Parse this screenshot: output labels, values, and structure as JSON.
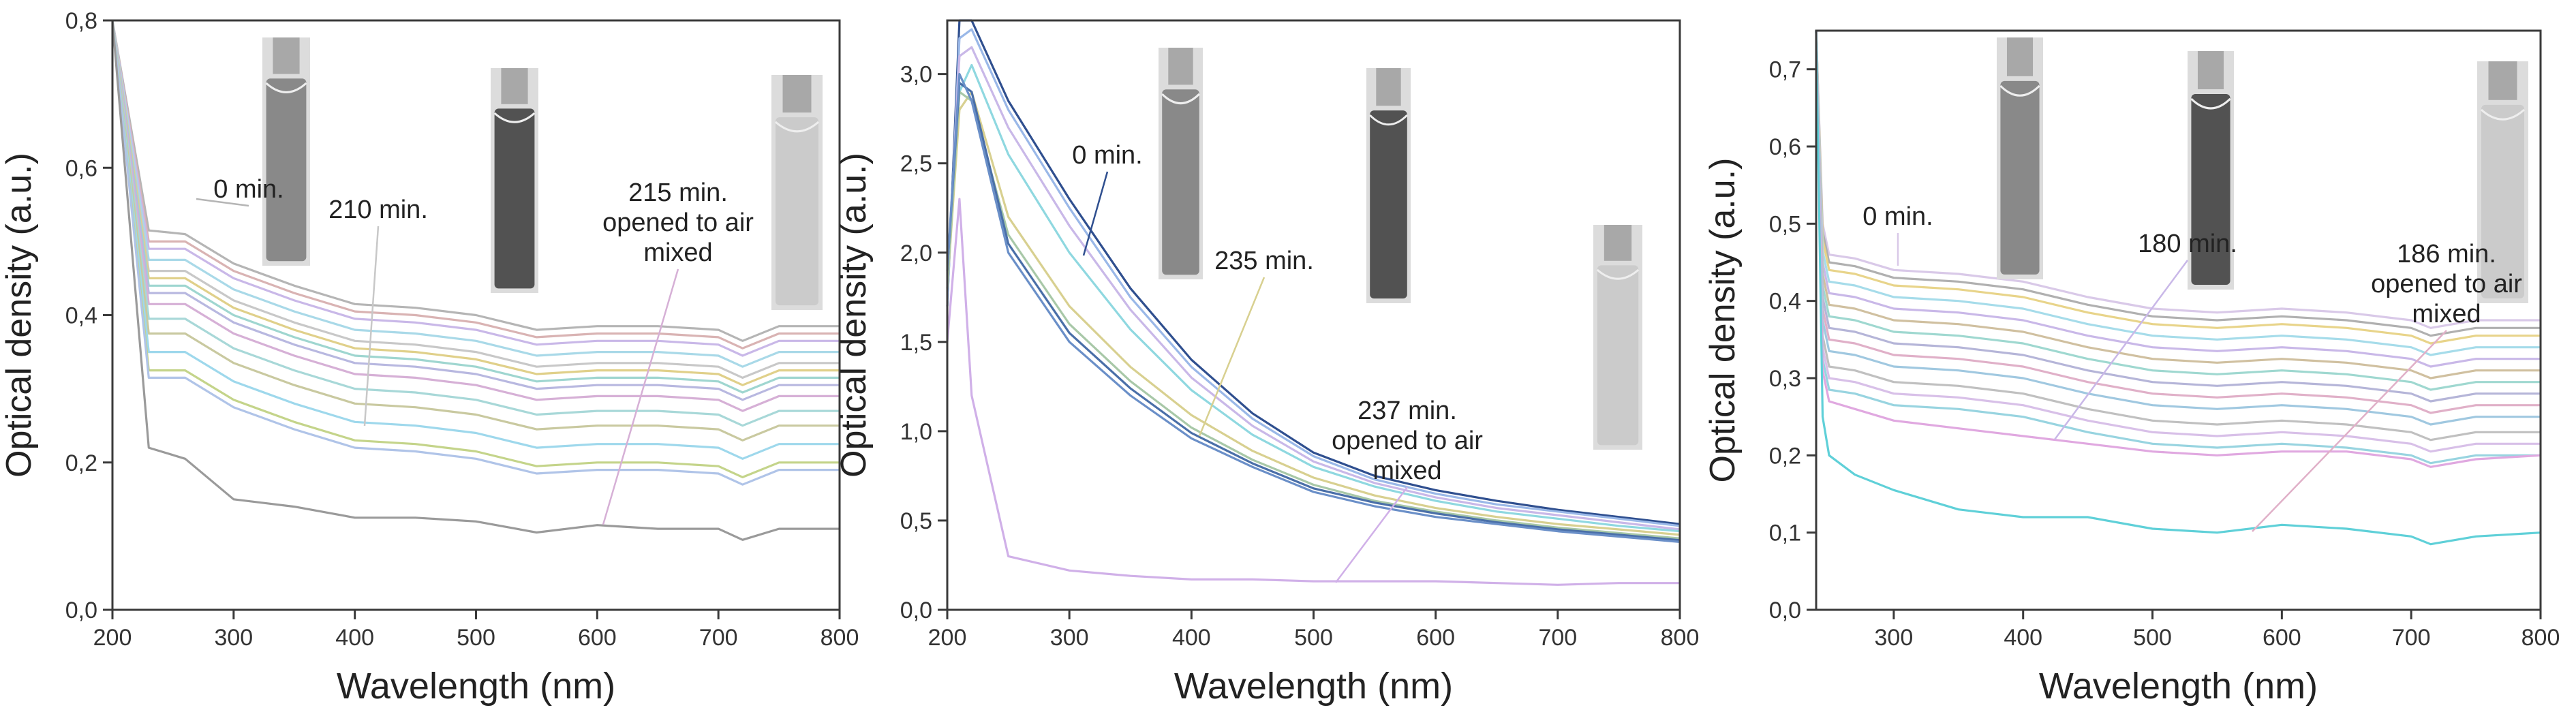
{
  "colors": {
    "axis": "#3a3a3a",
    "tick_text": "#333333",
    "annotation_text": "#222222",
    "photo_tube": "#8a8a8a"
  },
  "chart_data": [
    {
      "type": "line",
      "xlabel": "Wavelength (nm)",
      "ylabel": "Optical density (a.u.)",
      "xlim": [
        200,
        800
      ],
      "ylim": [
        0,
        0.8
      ],
      "x_ticks": [
        "200",
        "300",
        "400",
        "500",
        "600",
        "700",
        "800"
      ],
      "y_ticks": [
        "0,0",
        "0,2",
        "0,4",
        "0,6",
        "0,8"
      ],
      "grid": false,
      "x": [
        200,
        230,
        260,
        300,
        350,
        400,
        450,
        500,
        550,
        600,
        650,
        700,
        720,
        750,
        800
      ],
      "series_colors": [
        "#b5b5b5",
        "#d9b3b3",
        "#c9b8e8",
        "#a9d9e8",
        "#c8c8c8",
        "#e0d08a",
        "#9fd6d0",
        "#b8b8e0",
        "#d6b0d6",
        "#a8d8d8",
        "#c9c9a0",
        "#9ed8ec",
        "#c4d48a",
        "#b0c4e8",
        "#9a9a9a"
      ],
      "series": [
        {
          "values": [
            0.8,
            0.515,
            0.51,
            0.47,
            0.44,
            0.415,
            0.41,
            0.4,
            0.38,
            0.385,
            0.385,
            0.38,
            0.365,
            0.385,
            0.385
          ]
        },
        {
          "values": [
            0.8,
            0.5,
            0.5,
            0.46,
            0.43,
            0.405,
            0.4,
            0.39,
            0.37,
            0.375,
            0.375,
            0.37,
            0.355,
            0.375,
            0.375
          ]
        },
        {
          "values": [
            0.8,
            0.49,
            0.49,
            0.45,
            0.42,
            0.395,
            0.39,
            0.38,
            0.36,
            0.365,
            0.365,
            0.36,
            0.345,
            0.365,
            0.365
          ]
        },
        {
          "values": [
            0.8,
            0.475,
            0.475,
            0.435,
            0.405,
            0.38,
            0.375,
            0.365,
            0.345,
            0.35,
            0.35,
            0.345,
            0.33,
            0.35,
            0.35
          ]
        },
        {
          "values": [
            0.8,
            0.46,
            0.46,
            0.42,
            0.39,
            0.365,
            0.36,
            0.35,
            0.33,
            0.335,
            0.335,
            0.33,
            0.315,
            0.335,
            0.335
          ]
        },
        {
          "values": [
            0.8,
            0.45,
            0.45,
            0.41,
            0.38,
            0.355,
            0.35,
            0.34,
            0.32,
            0.325,
            0.325,
            0.32,
            0.305,
            0.325,
            0.325
          ]
        },
        {
          "values": [
            0.8,
            0.44,
            0.44,
            0.4,
            0.37,
            0.345,
            0.34,
            0.33,
            0.31,
            0.315,
            0.315,
            0.31,
            0.295,
            0.315,
            0.315
          ]
        },
        {
          "values": [
            0.8,
            0.43,
            0.43,
            0.39,
            0.36,
            0.335,
            0.33,
            0.32,
            0.3,
            0.305,
            0.305,
            0.3,
            0.285,
            0.305,
            0.305
          ]
        },
        {
          "values": [
            0.8,
            0.415,
            0.415,
            0.375,
            0.345,
            0.32,
            0.315,
            0.305,
            0.285,
            0.29,
            0.29,
            0.285,
            0.27,
            0.29,
            0.29
          ]
        },
        {
          "values": [
            0.8,
            0.395,
            0.395,
            0.355,
            0.325,
            0.3,
            0.295,
            0.285,
            0.265,
            0.27,
            0.27,
            0.265,
            0.25,
            0.27,
            0.27
          ]
        },
        {
          "values": [
            0.8,
            0.375,
            0.375,
            0.335,
            0.305,
            0.28,
            0.275,
            0.265,
            0.245,
            0.25,
            0.25,
            0.245,
            0.23,
            0.25,
            0.25
          ]
        },
        {
          "values": [
            0.8,
            0.35,
            0.35,
            0.31,
            0.28,
            0.255,
            0.25,
            0.24,
            0.22,
            0.225,
            0.225,
            0.22,
            0.205,
            0.225,
            0.225
          ]
        },
        {
          "values": [
            0.8,
            0.325,
            0.325,
            0.285,
            0.255,
            0.23,
            0.225,
            0.215,
            0.195,
            0.2,
            0.2,
            0.195,
            0.18,
            0.2,
            0.2
          ]
        },
        {
          "values": [
            0.8,
            0.315,
            0.315,
            0.275,
            0.245,
            0.22,
            0.215,
            0.205,
            0.185,
            0.19,
            0.19,
            0.185,
            0.17,
            0.19,
            0.19
          ]
        },
        {
          "values": [
            0.8,
            0.22,
            0.205,
            0.15,
            0.14,
            0.125,
            0.125,
            0.12,
            0.105,
            0.115,
            0.11,
            0.11,
            0.095,
            0.11,
            0.11
          ]
        }
      ],
      "annotations": [
        {
          "text": "0 min.",
          "x": 270,
          "y": 0.51
        },
        {
          "text": "210 min.",
          "x": 420,
          "y": 0.26
        },
        {
          "text": "215 min.\nopened to air\nmixed",
          "x": 600,
          "y": 0.12
        }
      ]
    },
    {
      "type": "line",
      "xlabel": "Wavelength (nm)",
      "ylabel": "Optical density (a.u.)",
      "xlim": [
        200,
        800
      ],
      "ylim": [
        0,
        3.3
      ],
      "x_ticks": [
        "200",
        "300",
        "400",
        "500",
        "600",
        "700",
        "800"
      ],
      "y_ticks": [
        "0,0",
        "0,5",
        "1,0",
        "1,5",
        "2,0",
        "2,5",
        "3,0"
      ],
      "grid": false,
      "x": [
        200,
        210,
        220,
        250,
        300,
        350,
        400,
        450,
        500,
        550,
        600,
        650,
        700,
        750,
        800
      ],
      "series_colors": [
        "#2f4f8f",
        "#9ab8e8",
        "#c9b8e8",
        "#8fd8e0",
        "#d8d090",
        "#a8c8a8",
        "#4a6fa8",
        "#6a8fc8",
        "#d0b0e8"
      ],
      "series": [
        {
          "values": [
            1.7,
            3.3,
            3.3,
            2.85,
            2.3,
            1.8,
            1.4,
            1.1,
            0.88,
            0.75,
            0.67,
            0.61,
            0.56,
            0.52,
            0.48
          ]
        },
        {
          "values": [
            1.7,
            3.2,
            3.25,
            2.8,
            2.25,
            1.75,
            1.36,
            1.07,
            0.86,
            0.73,
            0.65,
            0.59,
            0.55,
            0.51,
            0.47
          ]
        },
        {
          "values": [
            1.8,
            3.1,
            3.15,
            2.7,
            2.15,
            1.68,
            1.3,
            1.03,
            0.83,
            0.71,
            0.63,
            0.57,
            0.53,
            0.49,
            0.45
          ]
        },
        {
          "values": [
            1.8,
            2.9,
            3.05,
            2.55,
            2.0,
            1.57,
            1.23,
            0.98,
            0.8,
            0.69,
            0.61,
            0.55,
            0.51,
            0.47,
            0.44
          ]
        },
        {
          "values": [
            1.8,
            2.8,
            2.9,
            2.2,
            1.7,
            1.36,
            1.09,
            0.89,
            0.74,
            0.64,
            0.57,
            0.52,
            0.48,
            0.45,
            0.42
          ]
        },
        {
          "values": [
            1.8,
            2.9,
            2.85,
            2.1,
            1.6,
            1.28,
            1.02,
            0.84,
            0.7,
            0.61,
            0.55,
            0.5,
            0.46,
            0.43,
            0.4
          ]
        },
        {
          "values": [
            1.9,
            2.95,
            2.9,
            2.05,
            1.55,
            1.24,
            0.99,
            0.82,
            0.68,
            0.6,
            0.54,
            0.49,
            0.45,
            0.42,
            0.39
          ]
        },
        {
          "values": [
            1.9,
            3.0,
            2.85,
            2.0,
            1.5,
            1.2,
            0.96,
            0.8,
            0.66,
            0.58,
            0.52,
            0.48,
            0.44,
            0.41,
            0.38
          ]
        },
        {
          "values": [
            1.5,
            2.3,
            1.2,
            0.3,
            0.22,
            0.19,
            0.17,
            0.17,
            0.16,
            0.16,
            0.16,
            0.15,
            0.14,
            0.15,
            0.15
          ]
        }
      ],
      "annotations": [
        {
          "text": "0 min.",
          "x": 300,
          "y": 2.15
        },
        {
          "text": "235 min.",
          "x": 400,
          "y": 0.98
        },
        {
          "text": "237 min.\nopened to air\nmixed",
          "x": 510,
          "y": 0.16
        }
      ]
    },
    {
      "type": "line",
      "xlabel": "Wavelength (nm)",
      "ylabel": "Optical density (a.u.)",
      "xlim": [
        240,
        800
      ],
      "ylim": [
        0,
        0.75
      ],
      "x_ticks": [
        "300",
        "400",
        "500",
        "600",
        "700",
        "800"
      ],
      "y_ticks": [
        "0,0",
        "0,1",
        "0,2",
        "0,3",
        "0,4",
        "0,5",
        "0,6",
        "0,7"
      ],
      "grid": false,
      "x": [
        240,
        245,
        250,
        270,
        300,
        350,
        400,
        450,
        500,
        550,
        600,
        650,
        700,
        715,
        750,
        800
      ],
      "series_colors": [
        "#d9c9e8",
        "#b0b0b0",
        "#e8d48a",
        "#a6dcea",
        "#c9b8e8",
        "#d0c0a0",
        "#9fd8d0",
        "#b5b5d8",
        "#e0b0c8",
        "#a0c8e0",
        "#c0c0c0",
        "#d8c0e8",
        "#98d4e0",
        "#e0a8e0",
        "#5fd0d8"
      ],
      "series": [
        {
          "values": [
            0.75,
            0.5,
            0.46,
            0.455,
            0.44,
            0.435,
            0.425,
            0.405,
            0.39,
            0.385,
            0.39,
            0.385,
            0.375,
            0.365,
            0.375,
            0.375
          ]
        },
        {
          "values": [
            0.75,
            0.49,
            0.45,
            0.445,
            0.43,
            0.425,
            0.415,
            0.395,
            0.38,
            0.375,
            0.38,
            0.375,
            0.365,
            0.355,
            0.365,
            0.365
          ]
        },
        {
          "values": [
            0.75,
            0.48,
            0.44,
            0.435,
            0.42,
            0.415,
            0.405,
            0.385,
            0.37,
            0.365,
            0.37,
            0.365,
            0.355,
            0.345,
            0.355,
            0.355
          ]
        },
        {
          "values": [
            0.75,
            0.465,
            0.425,
            0.42,
            0.405,
            0.4,
            0.39,
            0.37,
            0.355,
            0.35,
            0.355,
            0.35,
            0.34,
            0.33,
            0.34,
            0.34
          ]
        },
        {
          "values": [
            0.75,
            0.45,
            0.41,
            0.405,
            0.39,
            0.385,
            0.375,
            0.355,
            0.34,
            0.335,
            0.34,
            0.335,
            0.325,
            0.315,
            0.325,
            0.325
          ]
        },
        {
          "values": [
            0.75,
            0.435,
            0.395,
            0.39,
            0.375,
            0.37,
            0.36,
            0.34,
            0.325,
            0.32,
            0.325,
            0.32,
            0.31,
            0.3,
            0.31,
            0.31
          ]
        },
        {
          "values": [
            0.75,
            0.42,
            0.38,
            0.375,
            0.36,
            0.355,
            0.345,
            0.325,
            0.31,
            0.305,
            0.31,
            0.305,
            0.295,
            0.285,
            0.295,
            0.295
          ]
        },
        {
          "values": [
            0.75,
            0.405,
            0.365,
            0.36,
            0.345,
            0.34,
            0.33,
            0.31,
            0.295,
            0.29,
            0.295,
            0.29,
            0.28,
            0.27,
            0.28,
            0.28
          ]
        },
        {
          "values": [
            0.75,
            0.39,
            0.35,
            0.345,
            0.33,
            0.325,
            0.315,
            0.295,
            0.28,
            0.275,
            0.28,
            0.275,
            0.265,
            0.255,
            0.265,
            0.265
          ]
        },
        {
          "values": [
            0.75,
            0.375,
            0.335,
            0.33,
            0.315,
            0.31,
            0.3,
            0.28,
            0.265,
            0.26,
            0.265,
            0.26,
            0.25,
            0.24,
            0.25,
            0.25
          ]
        },
        {
          "values": [
            0.75,
            0.355,
            0.315,
            0.31,
            0.295,
            0.29,
            0.28,
            0.26,
            0.245,
            0.24,
            0.245,
            0.24,
            0.23,
            0.22,
            0.23,
            0.23
          ]
        },
        {
          "values": [
            0.75,
            0.34,
            0.3,
            0.295,
            0.28,
            0.275,
            0.265,
            0.245,
            0.23,
            0.225,
            0.23,
            0.225,
            0.215,
            0.205,
            0.215,
            0.215
          ]
        },
        {
          "values": [
            0.75,
            0.325,
            0.285,
            0.28,
            0.265,
            0.26,
            0.25,
            0.23,
            0.215,
            0.21,
            0.215,
            0.21,
            0.2,
            0.19,
            0.2,
            0.2
          ]
        },
        {
          "values": [
            0.75,
            0.31,
            0.27,
            0.26,
            0.245,
            0.235,
            0.225,
            0.215,
            0.205,
            0.2,
            0.205,
            0.205,
            0.195,
            0.185,
            0.195,
            0.2
          ]
        },
        {
          "values": [
            0.75,
            0.25,
            0.2,
            0.175,
            0.155,
            0.13,
            0.12,
            0.12,
            0.105,
            0.1,
            0.11,
            0.105,
            0.095,
            0.085,
            0.095,
            0.1
          ]
        }
      ],
      "annotations": [
        {
          "text": "0 min.",
          "x": 360,
          "y": 0.44
        },
        {
          "text": "180 min.",
          "x": 420,
          "y": 0.22
        },
        {
          "text": "186 min.\nopened to air\nmixed",
          "x": 600,
          "y": 0.105
        }
      ]
    }
  ]
}
